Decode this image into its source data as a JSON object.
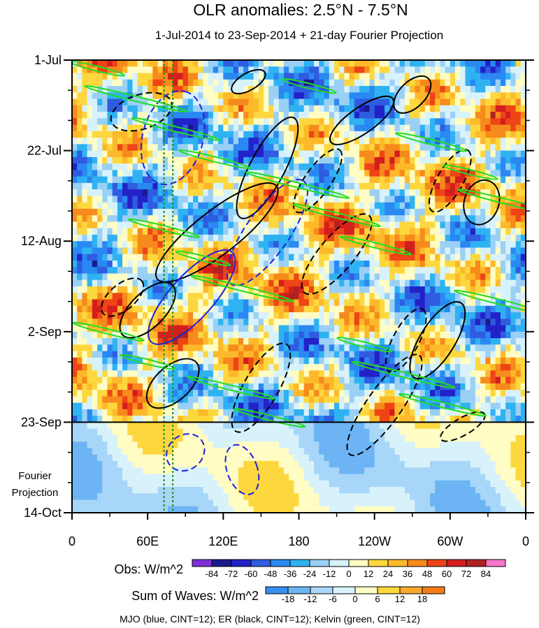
{
  "chart_data": {
    "type": "heatmap",
    "title": "OLR anomalies: 2.5°N - 7.5°N",
    "subtitle": "1-Jul-2014 to 23-Sep-2014 + 21-day Fourier Projection",
    "x_label_values": [
      0,
      60,
      120,
      180,
      240,
      300,
      360
    ],
    "x_tick_labels": [
      "0",
      "60E",
      "120E",
      "180",
      "120W",
      "60W",
      "0"
    ],
    "xlim": [
      0,
      360
    ],
    "y_tick_days": [
      0,
      21,
      42,
      63,
      84,
      105
    ],
    "y_tick_labels": [
      "1-Jul",
      "22-Jul",
      "12-Aug",
      "2-Sep",
      "23-Sep",
      "14-Oct"
    ],
    "ylim_days": [
      0,
      105
    ],
    "observation_end_day": 84,
    "projection_label": [
      "Fourier",
      "Projection"
    ],
    "reference_longitudes": [
      73,
      80
    ],
    "obs_colorbar": {
      "label": "Obs: W/m^2",
      "levels": [
        -84,
        -72,
        -60,
        -48,
        -36,
        -24,
        -12,
        0,
        12,
        24,
        36,
        48,
        60,
        72,
        84
      ],
      "colors": [
        "#7f2fd8",
        "#1a1a8c",
        "#2222c8",
        "#2f5ce0",
        "#2a88f2",
        "#2fb2f2",
        "#9ad0f5",
        "#d8f2fb",
        "#fffcc4",
        "#fcd73e",
        "#fdb92a",
        "#f78a1c",
        "#ee4416",
        "#d41e1e",
        "#b02222",
        "#f878c8"
      ]
    },
    "waves_colorbar": {
      "label": "Sum of Waves: W/m^2",
      "levels": [
        -18,
        -12,
        -6,
        0,
        6,
        12,
        18
      ],
      "colors": [
        "#3a8ef0",
        "#6cb4f4",
        "#a8d6f8",
        "#d8f2fb",
        "#fffcc4",
        "#fcd73e",
        "#f8a92e",
        "#f47c18"
      ]
    },
    "series": [
      {
        "name": "MJO",
        "color": "#2020e0",
        "contour_interval": 12
      },
      {
        "name": "ER",
        "color": "#000000",
        "contour_interval": 12
      },
      {
        "name": "Kelvin",
        "color": "#22dd22",
        "contour_interval": 12
      }
    ],
    "caption": "MJO (blue, CINT=12); ER (black, CINT=12); Kelvin (green, CINT=12)"
  }
}
